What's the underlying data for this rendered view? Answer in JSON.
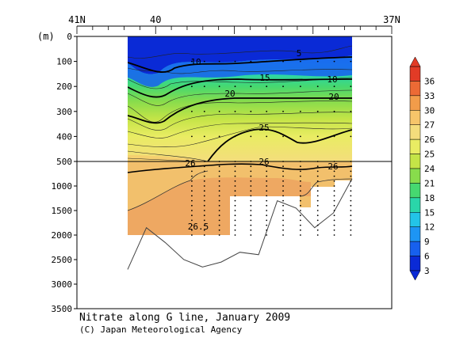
{
  "chart_data": {
    "type": "heatmap",
    "title": "Nitrate along G line, January 2009",
    "credit": "(C) Japan Meteorological Agency",
    "ylabel": "(m)",
    "top_axis": {
      "ticks": [
        {
          "label": "41N",
          "lat": 41
        },
        {
          "label": "40",
          "lat": 40
        },
        {
          "label": "37N",
          "lat": 37
        }
      ],
      "range": [
        41,
        37
      ]
    },
    "y_ticks_upper": [
      0,
      100,
      200,
      300,
      400,
      500
    ],
    "y_ticks_lower": [
      1000,
      1500,
      2000,
      2500,
      3000,
      3500
    ],
    "ylim": [
      0,
      3500
    ],
    "split_depth": 500,
    "colorbar": {
      "levels": [
        3,
        6,
        9,
        12,
        15,
        18,
        21,
        24,
        25,
        26,
        27,
        30,
        33,
        36
      ],
      "colors": [
        "#0a2ad6",
        "#1760ee",
        "#1d95f4",
        "#23c4e8",
        "#2ad6a9",
        "#46d870",
        "#88dc4c",
        "#c4e447",
        "#e9ec63",
        "#f4dd7c",
        "#f6c56a",
        "#f29c4a",
        "#ec6a35",
        "#e23b26"
      ]
    },
    "contour_labels": [
      "5",
      "10",
      "15",
      "10",
      "20",
      "20",
      "25",
      "26",
      "26",
      "26",
      "26.5"
    ],
    "station_lats": [
      39.54,
      39.38,
      39.19,
      38.99,
      38.79,
      38.59,
      38.38,
      38.16,
      37.94,
      37.73,
      37.52
    ],
    "bottom_depths": [
      2700,
      1850,
      2150,
      2500,
      2650,
      2550,
      2350,
      2400,
      1300,
      1450,
      1850,
      1550,
      850
    ]
  }
}
